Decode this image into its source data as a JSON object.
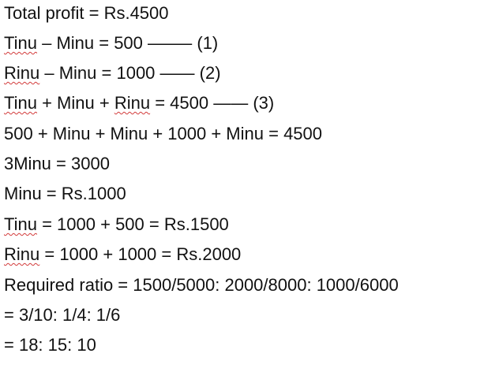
{
  "lines": [
    [
      {
        "t": "Total profit = Rs.4500"
      }
    ],
    [
      {
        "t": "Tinu",
        "spell": true
      },
      {
        "t": " – Minu = 500 ——– (1)"
      }
    ],
    [
      {
        "t": "Rinu",
        "spell": true
      },
      {
        "t": " – Minu = 1000 —— (2)"
      }
    ],
    [
      {
        "t": "Tinu",
        "spell": true
      },
      {
        "t": " + Minu + "
      },
      {
        "t": "Rinu",
        "spell": true
      },
      {
        "t": " = 4500 —— (3)"
      }
    ],
    [
      {
        "t": "500 + Minu + Minu + 1000 + Minu = 4500"
      }
    ],
    [
      {
        "t": "3Minu = 3000"
      }
    ],
    [
      {
        "t": "Minu = Rs.1000"
      }
    ],
    [
      {
        "t": "Tinu",
        "spell": true
      },
      {
        "t": " = 1000 + 500 = Rs.1500"
      }
    ],
    [
      {
        "t": "Rinu",
        "spell": true
      },
      {
        "t": " = 1000 + 1000 = Rs.2000"
      }
    ],
    [
      {
        "t": "Required ratio = 1500/5000: 2000/8000: 1000/6000"
      }
    ],
    [
      {
        "t": "= 3/10: 1/4: 1/6"
      }
    ],
    [
      {
        "t": "= 18: 15: 10"
      }
    ]
  ]
}
